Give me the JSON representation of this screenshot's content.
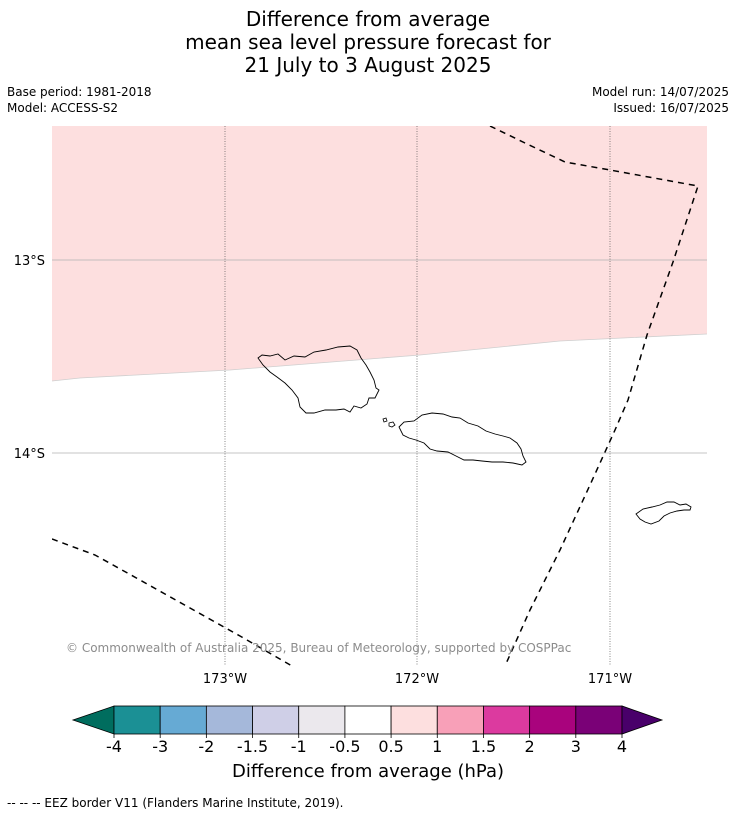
{
  "title": {
    "line1": "Difference from average",
    "line2": "mean sea level pressure forecast for",
    "line3": "21 July to 3 August 2025"
  },
  "info": {
    "base_period": "Base period: 1981-2018",
    "model": "Model: ACCESS-S2",
    "model_run": "Model run: 14/07/2025",
    "issued": "Issued: 16/07/2025"
  },
  "map": {
    "lat_labels": [
      "13°S",
      "14°S"
    ],
    "lon_labels": [
      "173°W",
      "172°W",
      "171°W"
    ],
    "copyright": "© Commonwealth of Australia 2025, Bureau of Meteorology, supported by COSPPac",
    "anomaly_fill_color": "#fddfdf",
    "anomaly_category": "0.5 to 1"
  },
  "colorbar": {
    "title": "Difference from average (hPa)",
    "tick_labels": [
      "-4",
      "-3",
      "-2",
      "-1.5",
      "-1",
      "-0.5",
      "0.5",
      "1",
      "1.5",
      "2",
      "3",
      "4"
    ],
    "colors": [
      "#006d5e",
      "#1b9095",
      "#66aad4",
      "#a5b8da",
      "#cfcfe7",
      "#ebe8ed",
      "#ffffff",
      "#fddfdf",
      "#f8a0b8",
      "#dc3a9f",
      "#a9037d",
      "#7a0177",
      "#49006a"
    ]
  },
  "legend": {
    "eez_line": "--  --  -- EEZ border V11 (Flanders Marine Institute, 2019)."
  }
}
